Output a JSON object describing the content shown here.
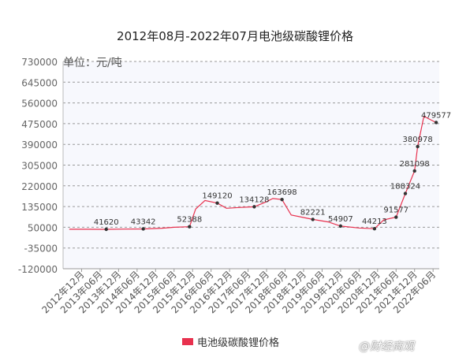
{
  "chart_data": {
    "type": "line",
    "title": "2012年08月-2022年07月电池级碳酸锂价格",
    "ylabel": "单位：元/吨",
    "ylim": [
      -120000,
      730000
    ],
    "yticks": [
      730000,
      645000,
      560000,
      475000,
      390000,
      305000,
      220000,
      135000,
      50000,
      -35000,
      -120000
    ],
    "ytick_labels": [
      "730000",
      "645000",
      "560000",
      "475000",
      "390000",
      "305000",
      "220000",
      "135000",
      "50000",
      "-35000",
      "-120000"
    ],
    "xtick_labels": [
      "2012年12月",
      "2013年06月",
      "2013年12月",
      "2014年06月",
      "2014年12月",
      "2015年06月",
      "2015年12月",
      "2016年06月",
      "2016年12月",
      "2017年06月",
      "2017年12月",
      "2018年06月",
      "2018年12月",
      "2019年06月",
      "2019年12月",
      "2020年06月",
      "2020年12月",
      "2021年06月",
      "2021年12月",
      "2022年06月"
    ],
    "grid": true,
    "legend": "bottom",
    "series": [
      {
        "name": "电池级碳酸锂价格",
        "color": "#e8314e",
        "points": [
          {
            "x": "2012-08",
            "y": 42000
          },
          {
            "x": "2013-02",
            "y": 42000
          },
          {
            "x": "2013-08",
            "y": 41620
          },
          {
            "x": "2014-02",
            "y": 42500
          },
          {
            "x": "2014-08",
            "y": 43342
          },
          {
            "x": "2015-02",
            "y": 46000
          },
          {
            "x": "2015-06",
            "y": 50000
          },
          {
            "x": "2015-11",
            "y": 52388
          },
          {
            "x": "2016-01",
            "y": 125000
          },
          {
            "x": "2016-04",
            "y": 160000
          },
          {
            "x": "2016-08",
            "y": 149120
          },
          {
            "x": "2016-11",
            "y": 128000
          },
          {
            "x": "2017-03",
            "y": 131000
          },
          {
            "x": "2017-08",
            "y": 134128
          },
          {
            "x": "2017-12",
            "y": 155000
          },
          {
            "x": "2018-02",
            "y": 168000
          },
          {
            "x": "2018-05",
            "y": 163698
          },
          {
            "x": "2018-08",
            "y": 100000
          },
          {
            "x": "2018-12",
            "y": 90000
          },
          {
            "x": "2019-03",
            "y": 82221
          },
          {
            "x": "2019-08",
            "y": 72000
          },
          {
            "x": "2019-12",
            "y": 54907
          },
          {
            "x": "2020-06",
            "y": 47000
          },
          {
            "x": "2020-11",
            "y": 44213
          },
          {
            "x": "2021-02",
            "y": 80000
          },
          {
            "x": "2021-06",
            "y": 91577
          },
          {
            "x": "2021-09",
            "y": 188324
          },
          {
            "x": "2021-12",
            "y": 281098
          },
          {
            "x": "2022-01",
            "y": 380978
          },
          {
            "x": "2022-03",
            "y": 505000
          },
          {
            "x": "2022-07",
            "y": 479577
          }
        ],
        "data_labels": [
          {
            "x": "2013-08",
            "y": 41620,
            "text": "41620"
          },
          {
            "x": "2014-08",
            "y": 43342,
            "text": "43342"
          },
          {
            "x": "2015-11",
            "y": 52388,
            "text": "52388"
          },
          {
            "x": "2016-08",
            "y": 149120,
            "text": "149120"
          },
          {
            "x": "2017-08",
            "y": 134128,
            "text": "134128"
          },
          {
            "x": "2018-05",
            "y": 163698,
            "text": "163698"
          },
          {
            "x": "2019-03",
            "y": 82221,
            "text": "82221"
          },
          {
            "x": "2019-12",
            "y": 54907,
            "text": "54907"
          },
          {
            "x": "2020-11",
            "y": 44213,
            "text": "44213"
          },
          {
            "x": "2021-06",
            "y": 91577,
            "text": "91577"
          },
          {
            "x": "2021-09",
            "y": 188324,
            "text": "188324"
          },
          {
            "x": "2021-12",
            "y": 281098,
            "text": "281098"
          },
          {
            "x": "2022-01",
            "y": 380978,
            "text": "380978"
          },
          {
            "x": "2022-07",
            "y": 479577,
            "text": "479577"
          }
        ]
      }
    ]
  },
  "legend": {
    "label": "电池级碳酸锂价格"
  },
  "watermark": {
    "text": "@财经商观"
  },
  "colors": {
    "line": "#e8314e",
    "marker": "#333333",
    "grid": "#999999",
    "plot_bg": "#f7f8fd"
  }
}
